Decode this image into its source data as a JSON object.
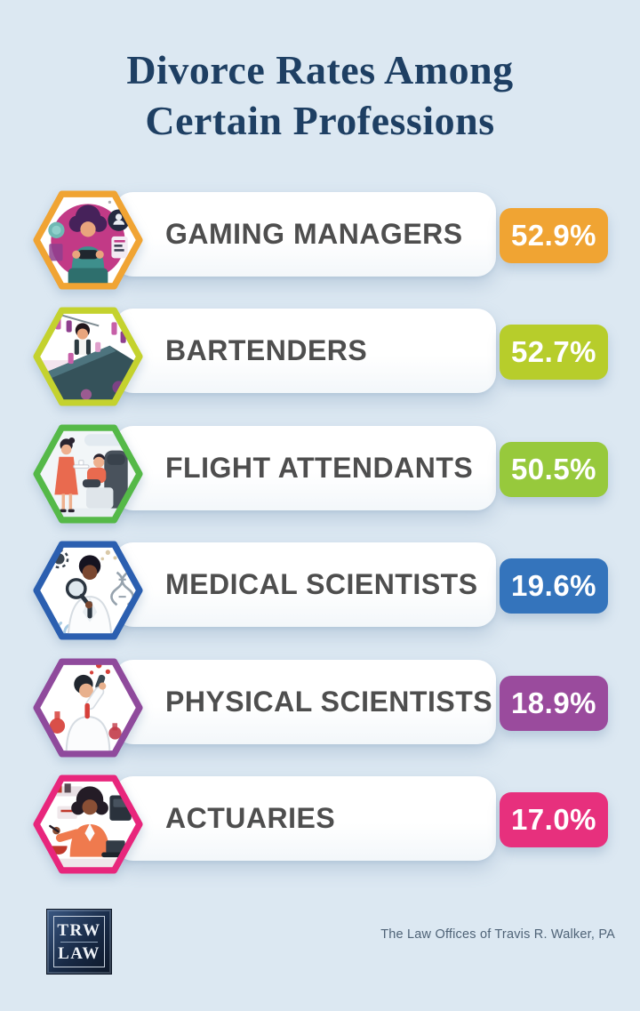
{
  "page": {
    "background_color": "#dce8f2",
    "title_line1": "Divorce Rates Among",
    "title_line2": "Certain Professions",
    "title_color": "#1e3f63"
  },
  "chart_data": {
    "type": "bar",
    "title": "Divorce Rates Among Certain Professions",
    "categories": [
      "Gaming Managers",
      "Bartenders",
      "Flight Attendants",
      "Medical Scientists",
      "Physical Scientists",
      "Actuaries"
    ],
    "values": [
      52.9,
      52.7,
      50.5,
      19.6,
      18.9,
      17.0
    ],
    "unit": "%",
    "orientation": "horizontal-list",
    "legend": "none",
    "grid": false,
    "source_text": "The Law Offices of Travis R. Walker, PA"
  },
  "rows": [
    {
      "label": "GAMING MANAGERS",
      "value": "52.9%",
      "badge_color": "#F0A433",
      "hex_color": "#F0A433",
      "icon": "gaming-manager-illustration"
    },
    {
      "label": "BARTENDERS",
      "value": "52.7%",
      "badge_color": "#B7CD2B",
      "hex_color": "#C4D22E",
      "icon": "bartender-illustration"
    },
    {
      "label": "FLIGHT ATTENDANTS",
      "value": "50.5%",
      "badge_color": "#97C93C",
      "hex_color": "#55B948",
      "icon": "flight-attendant-illustration"
    },
    {
      "label": "MEDICAL SCIENTISTS",
      "value": "19.6%",
      "badge_color": "#3474BC",
      "hex_color": "#2B5FB0",
      "icon": "medical-scientist-illustration"
    },
    {
      "label": "PHYSICAL SCIENTISTS",
      "value": "18.9%",
      "badge_color": "#9A4B9D",
      "hex_color": "#8F4A9C",
      "icon": "physical-scientist-illustration"
    },
    {
      "label": "ACTUARIES",
      "value": "17.0%",
      "badge_color": "#E7307D",
      "hex_color": "#E8267C",
      "icon": "actuary-illustration"
    }
  ],
  "footer": {
    "logo_line1": "TRW",
    "logo_line2": "LAW",
    "credit": "The Law Offices of Travis R. Walker, PA"
  }
}
